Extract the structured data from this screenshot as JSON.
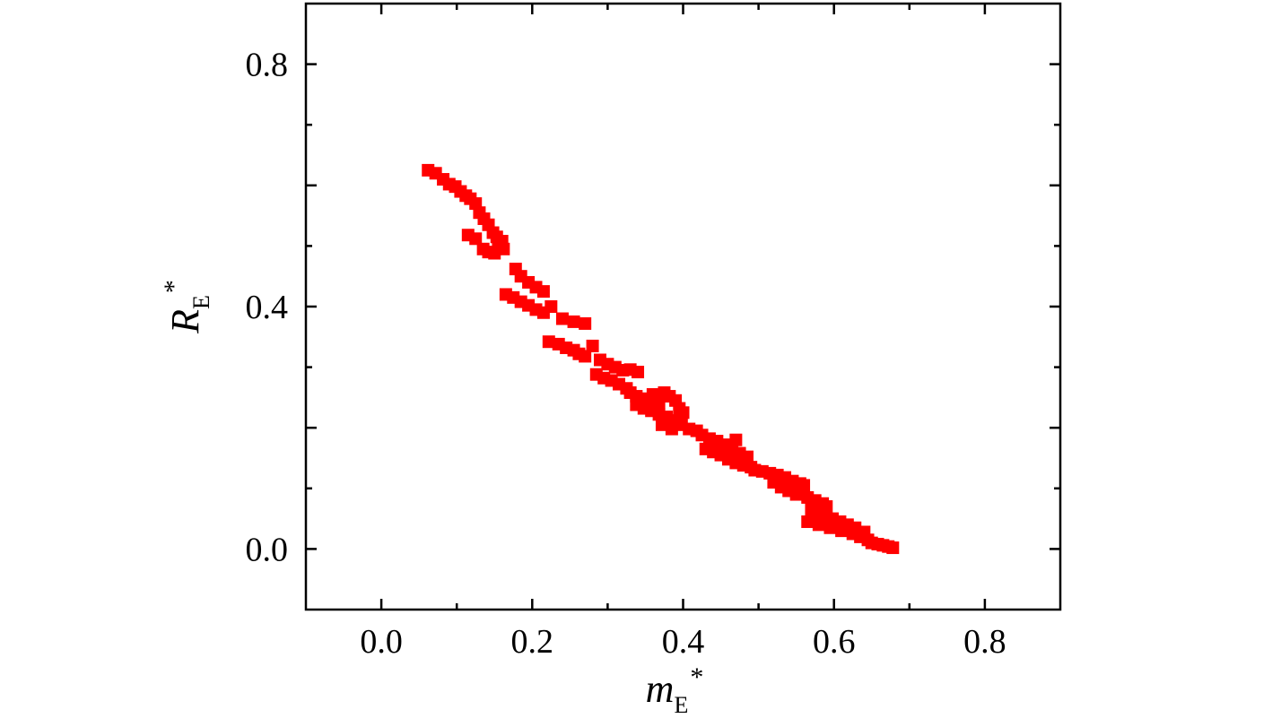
{
  "chart_data": {
    "type": "scatter",
    "title": "",
    "xlabel": {
      "main": "m",
      "sub": "E",
      "sup": "*"
    },
    "ylabel": {
      "main": "R",
      "sub": "E",
      "sup": "*"
    },
    "xlim": [
      -0.1,
      0.9
    ],
    "ylim": [
      -0.1,
      0.9
    ],
    "x_ticks": [
      "0.0",
      "0.2",
      "0.4",
      "0.6",
      "0.8"
    ],
    "y_ticks": [
      "0.0",
      "0.4",
      "0.8"
    ],
    "grid": false,
    "legend": "none",
    "marker": "square",
    "color": "#ff0000",
    "series": [
      {
        "points": [
          [
            0.062,
            0.625
          ],
          [
            0.072,
            0.62
          ],
          [
            0.082,
            0.61
          ],
          [
            0.09,
            0.602
          ],
          [
            0.098,
            0.598
          ],
          [
            0.105,
            0.59
          ],
          [
            0.112,
            0.583
          ],
          [
            0.118,
            0.578
          ],
          [
            0.125,
            0.57
          ],
          [
            0.13,
            0.555
          ],
          [
            0.136,
            0.545
          ],
          [
            0.142,
            0.535
          ],
          [
            0.148,
            0.522
          ],
          [
            0.153,
            0.515
          ],
          [
            0.16,
            0.508
          ],
          [
            0.115,
            0.518
          ],
          [
            0.125,
            0.512
          ],
          [
            0.135,
            0.495
          ],
          [
            0.142,
            0.49
          ],
          [
            0.15,
            0.488
          ],
          [
            0.155,
            0.5
          ],
          [
            0.162,
            0.495
          ],
          [
            0.178,
            0.462
          ],
          [
            0.185,
            0.45
          ],
          [
            0.195,
            0.44
          ],
          [
            0.205,
            0.432
          ],
          [
            0.215,
            0.425
          ],
          [
            0.165,
            0.42
          ],
          [
            0.175,
            0.415
          ],
          [
            0.185,
            0.408
          ],
          [
            0.195,
            0.402
          ],
          [
            0.205,
            0.395
          ],
          [
            0.215,
            0.39
          ],
          [
            0.225,
            0.4
          ],
          [
            0.24,
            0.38
          ],
          [
            0.255,
            0.375
          ],
          [
            0.27,
            0.372
          ],
          [
            0.222,
            0.342
          ],
          [
            0.235,
            0.338
          ],
          [
            0.245,
            0.332
          ],
          [
            0.255,
            0.328
          ],
          [
            0.262,
            0.322
          ],
          [
            0.27,
            0.318
          ],
          [
            0.28,
            0.335
          ],
          [
            0.29,
            0.312
          ],
          [
            0.3,
            0.305
          ],
          [
            0.31,
            0.3
          ],
          [
            0.32,
            0.295
          ],
          [
            0.33,
            0.296
          ],
          [
            0.34,
            0.292
          ],
          [
            0.285,
            0.288
          ],
          [
            0.295,
            0.282
          ],
          [
            0.305,
            0.278
          ],
          [
            0.315,
            0.272
          ],
          [
            0.325,
            0.265
          ],
          [
            0.33,
            0.258
          ],
          [
            0.338,
            0.252
          ],
          [
            0.345,
            0.248
          ],
          [
            0.352,
            0.244
          ],
          [
            0.36,
            0.255
          ],
          [
            0.368,
            0.24
          ],
          [
            0.375,
            0.258
          ],
          [
            0.382,
            0.252
          ],
          [
            0.39,
            0.245
          ],
          [
            0.395,
            0.232
          ],
          [
            0.4,
            0.225
          ],
          [
            0.338,
            0.238
          ],
          [
            0.348,
            0.232
          ],
          [
            0.358,
            0.228
          ],
          [
            0.368,
            0.222
          ],
          [
            0.378,
            0.218
          ],
          [
            0.388,
            0.212
          ],
          [
            0.398,
            0.205
          ],
          [
            0.408,
            0.198
          ],
          [
            0.418,
            0.195
          ],
          [
            0.372,
            0.205
          ],
          [
            0.385,
            0.198
          ],
          [
            0.425,
            0.188
          ],
          [
            0.435,
            0.182
          ],
          [
            0.445,
            0.178
          ],
          [
            0.455,
            0.172
          ],
          [
            0.47,
            0.18
          ],
          [
            0.465,
            0.165
          ],
          [
            0.475,
            0.158
          ],
          [
            0.485,
            0.152
          ],
          [
            0.43,
            0.165
          ],
          [
            0.44,
            0.16
          ],
          [
            0.45,
            0.155
          ],
          [
            0.46,
            0.148
          ],
          [
            0.47,
            0.142
          ],
          [
            0.48,
            0.138
          ],
          [
            0.49,
            0.135
          ],
          [
            0.495,
            0.13
          ],
          [
            0.505,
            0.128
          ],
          [
            0.515,
            0.125
          ],
          [
            0.525,
            0.122
          ],
          [
            0.535,
            0.118
          ],
          [
            0.545,
            0.112
          ],
          [
            0.555,
            0.108
          ],
          [
            0.56,
            0.105
          ],
          [
            0.52,
            0.11
          ],
          [
            0.53,
            0.102
          ],
          [
            0.54,
            0.096
          ],
          [
            0.55,
            0.09
          ],
          [
            0.565,
            0.085
          ],
          [
            0.575,
            0.08
          ],
          [
            0.585,
            0.075
          ],
          [
            0.59,
            0.07
          ],
          [
            0.57,
            0.065
          ],
          [
            0.578,
            0.06
          ],
          [
            0.588,
            0.055
          ],
          [
            0.598,
            0.05
          ],
          [
            0.608,
            0.045
          ],
          [
            0.618,
            0.04
          ],
          [
            0.628,
            0.035
          ],
          [
            0.565,
            0.045
          ],
          [
            0.58,
            0.04
          ],
          [
            0.595,
            0.035
          ],
          [
            0.61,
            0.03
          ],
          [
            0.625,
            0.025
          ],
          [
            0.635,
            0.02
          ],
          [
            0.64,
            0.028
          ],
          [
            0.645,
            0.015
          ],
          [
            0.65,
            0.01
          ],
          [
            0.658,
            0.008
          ],
          [
            0.665,
            0.006
          ],
          [
            0.672,
            0.004
          ],
          [
            0.678,
            0.002
          ]
        ]
      }
    ]
  }
}
